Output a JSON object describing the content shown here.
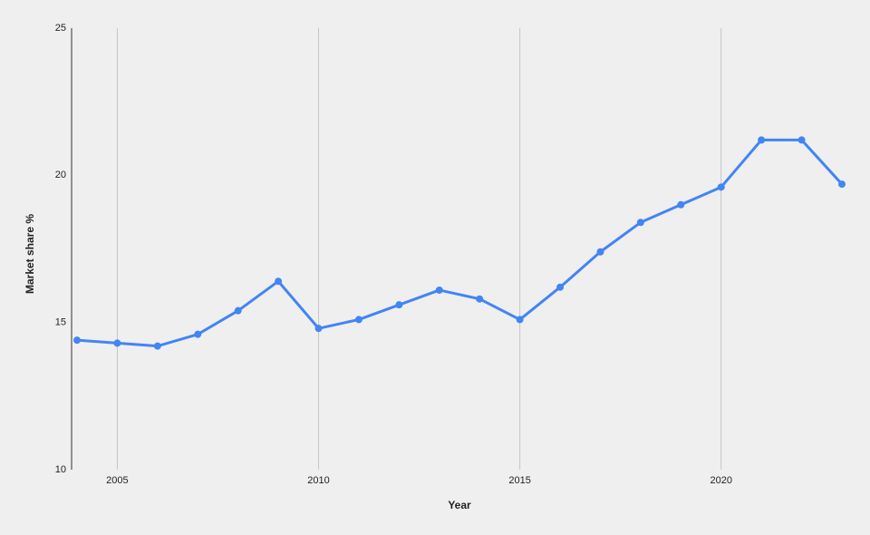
{
  "chart_data": {
    "type": "line",
    "x": [
      2004,
      2005,
      2006,
      2007,
      2008,
      2009,
      2010,
      2011,
      2012,
      2013,
      2014,
      2015,
      2016,
      2017,
      2018,
      2019,
      2020,
      2021,
      2022,
      2023
    ],
    "series": [
      {
        "color": "#4285f4",
        "values": [
          14.4,
          14.3,
          14.2,
          14.6,
          15.4,
          16.4,
          14.8,
          15.1,
          15.6,
          16.1,
          15.8,
          15.1,
          16.2,
          17.4,
          18.4,
          19.0,
          19.6,
          21.2,
          21.2,
          19.7
        ]
      }
    ],
    "xlabel": "Year",
    "ylabel": "Market share %",
    "xlim": [
      2004,
      2023
    ],
    "xticks": [
      2005,
      2010,
      2015,
      2020
    ],
    "ylim": [
      10,
      25
    ],
    "yticks": [
      10,
      15,
      20,
      25
    ],
    "grid": "x"
  }
}
